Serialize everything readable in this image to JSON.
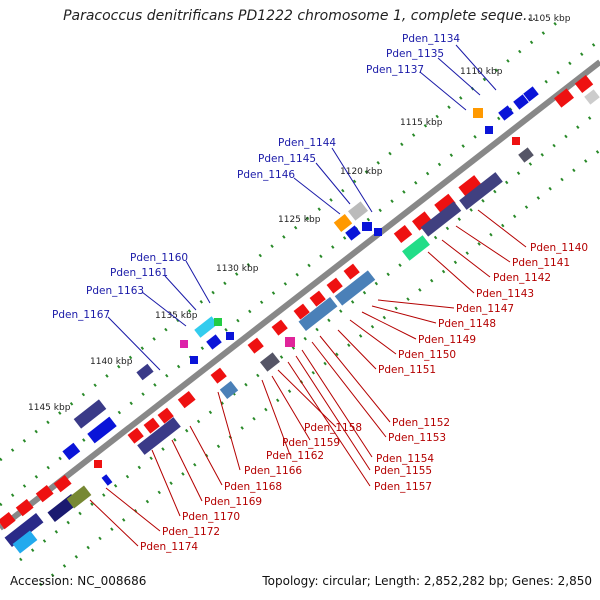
{
  "title": "Paracoccus denitrificans PD1222 chromosome 1, complete seque…",
  "accession": "Accession: NC_008686",
  "topology": "Topology: circular; Length: 2,852,282 bp; Genes: 2,850",
  "ticks": [
    "1105 kbp",
    "1110 kbp",
    "1115 kbp",
    "1120 kbp",
    "1125 kbp",
    "1130 kbp",
    "1135 kbp",
    "1140 kbp",
    "1145 kbp"
  ],
  "labels_top": [
    "Pden_1134",
    "Pden_1135",
    "Pden_1137",
    "Pden_1144",
    "Pden_1145",
    "Pden_1146",
    "Pden_1160",
    "Pden_1161",
    "Pden_1163",
    "Pden_1167"
  ],
  "labels_bottom": [
    "Pden_1140",
    "Pden_1141",
    "Pden_1142",
    "Pden_1143",
    "Pden_1147",
    "Pden_1148",
    "Pden_1149",
    "Pden_1150",
    "Pden_1151",
    "Pden_1152",
    "Pden_1153",
    "Pden_1154",
    "Pden_1155",
    "Pden_1157",
    "Pden_1158",
    "Pden_1159",
    "Pden_1162",
    "Pden_1166",
    "Pden_1168",
    "Pden_1169",
    "Pden_1170",
    "Pden_1172",
    "Pden_1174"
  ],
  "colors": {
    "forward": "#ee1111",
    "reverse": "#0a14d8",
    "backbone": "#888888",
    "gc": "#2a8a2a",
    "label_top": "#1a1aa8",
    "label_bottom": "#b40000"
  }
}
